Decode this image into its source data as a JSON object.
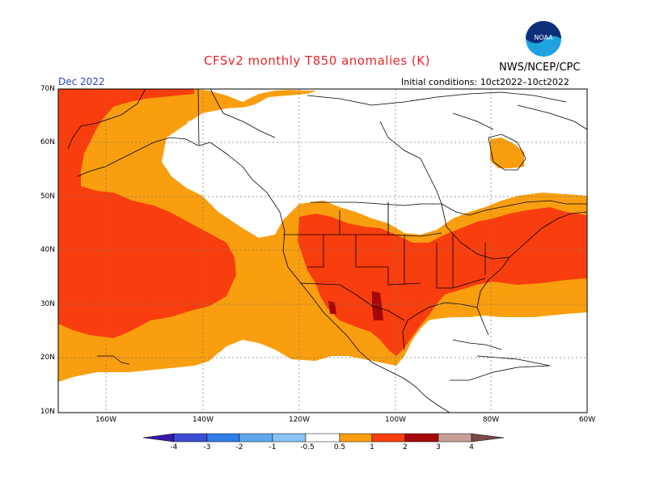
{
  "map": {
    "title": "CFSv2 monthly T850 anomalies (K)",
    "agency": "NWS/NCEP/CPC",
    "valid_month": "Dec 2022",
    "initial_conditions": "Initial conditions: 10ct2022–10ct2022",
    "logo_text": "NOAA",
    "lat_labels": [
      "70N",
      "60N",
      "50N",
      "40N",
      "30N",
      "20N",
      "10N"
    ],
    "lon_labels": [
      "160W",
      "140W",
      "120W",
      "100W",
      "80W",
      "60W"
    ],
    "projection": "cylindrical equidistant",
    "extent": {
      "lon_min": -170,
      "lon_max": -60,
      "lat_min": 10,
      "lat_max": 70
    }
  },
  "colorbar": {
    "labels": [
      "-4",
      "-3",
      "-2",
      "-1",
      "-0.5",
      "0.5",
      "1",
      "2",
      "3",
      "4"
    ],
    "colors": [
      "#3a18a8",
      "#3e4ed2",
      "#2f7ee8",
      "#5fa8f0",
      "#88c2f6",
      "#ffffff",
      "#f99e0e",
      "#f83e0e",
      "#a5080a",
      "#c8a096",
      "#7a4a46"
    ]
  }
}
